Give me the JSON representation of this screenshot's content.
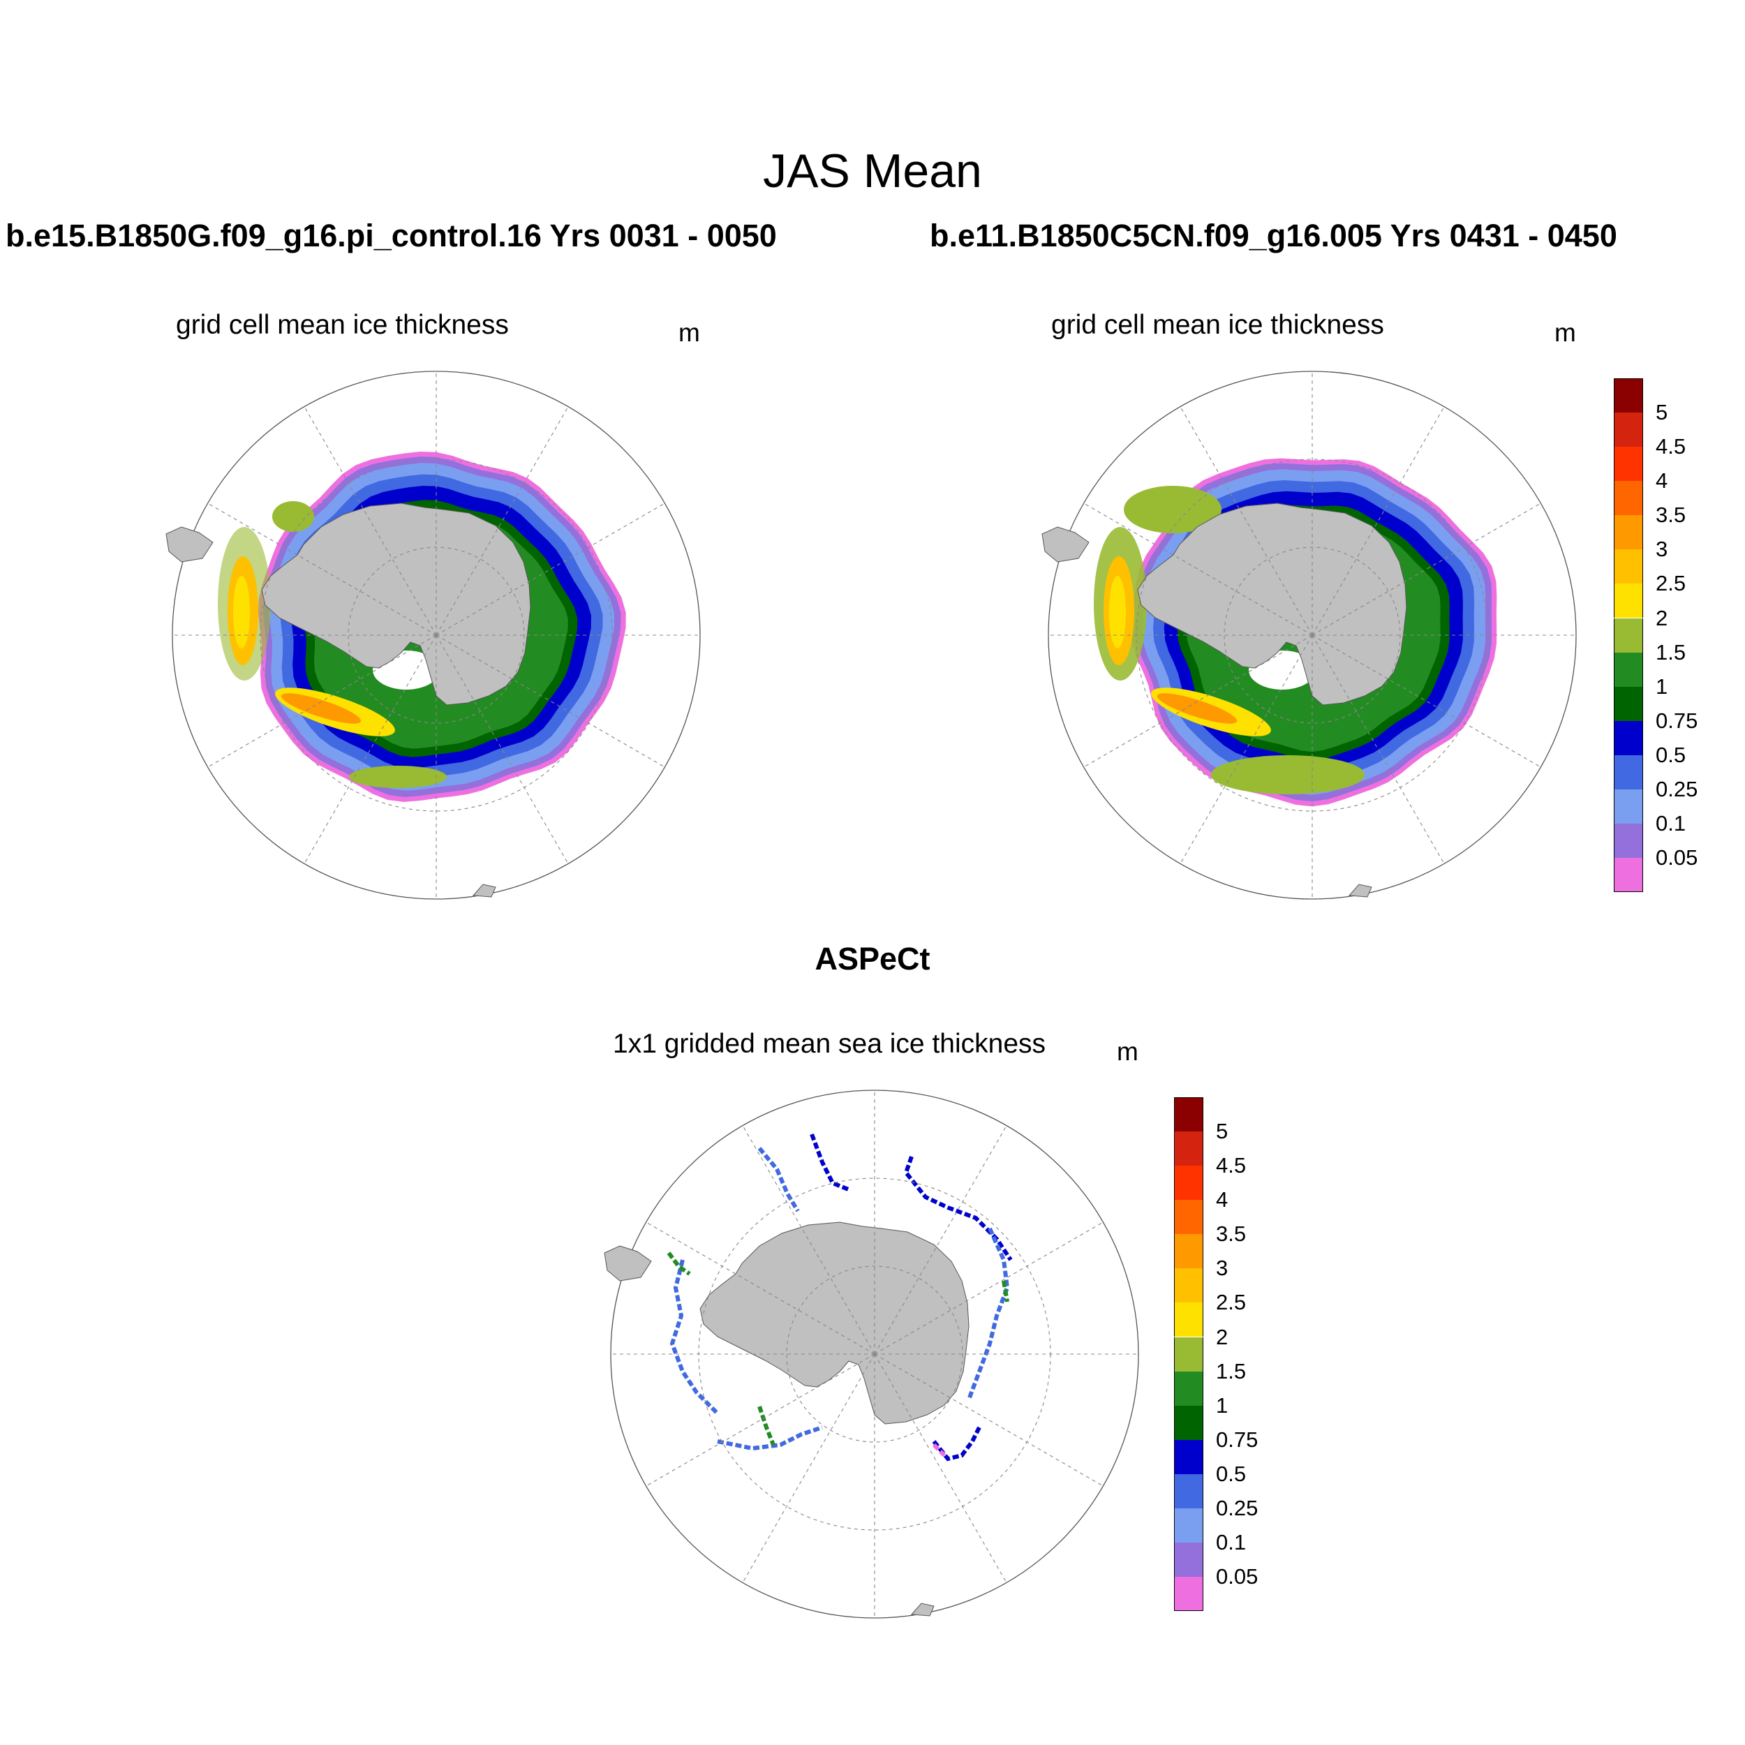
{
  "figure": {
    "main_title": "JAS Mean",
    "colorbar_levels": [
      "5",
      "4.5",
      "4",
      "3.5",
      "3",
      "2.5",
      "2",
      "1.5",
      "1",
      "0.75",
      "0.5",
      "0.25",
      "0.1",
      "0.05"
    ],
    "colorbar_colors": [
      "#8b0000",
      "#d4230f",
      "#ff3300",
      "#ff6600",
      "#ff9900",
      "#ffc000",
      "#ffe100",
      "#99bb33",
      "#228b22",
      "#006400",
      "#0000cd",
      "#4169e1",
      "#7b9ff0",
      "#9370db",
      "#ee70e0"
    ],
    "land_color": "#c0c0c0",
    "panels": [
      {
        "case_title": "b.e15.B1850G.f09_g16.pi_control.16  Yrs 0031 - 0050",
        "subtitle": "grid cell mean ice thickness",
        "units": "m",
        "projection": "south-polar-stereographic",
        "has_colorbar": false
      },
      {
        "case_title": "b.e11.B1850C5CN.f09_g16.005  Yrs 0431 - 0450",
        "subtitle": "grid cell mean ice thickness",
        "units": "m",
        "projection": "south-polar-stereographic",
        "has_colorbar": true
      },
      {
        "case_title": "ASPeCt",
        "subtitle": "1x1 gridded mean sea ice thickness",
        "units": "m",
        "projection": "south-polar-stereographic",
        "has_colorbar": true
      }
    ]
  }
}
